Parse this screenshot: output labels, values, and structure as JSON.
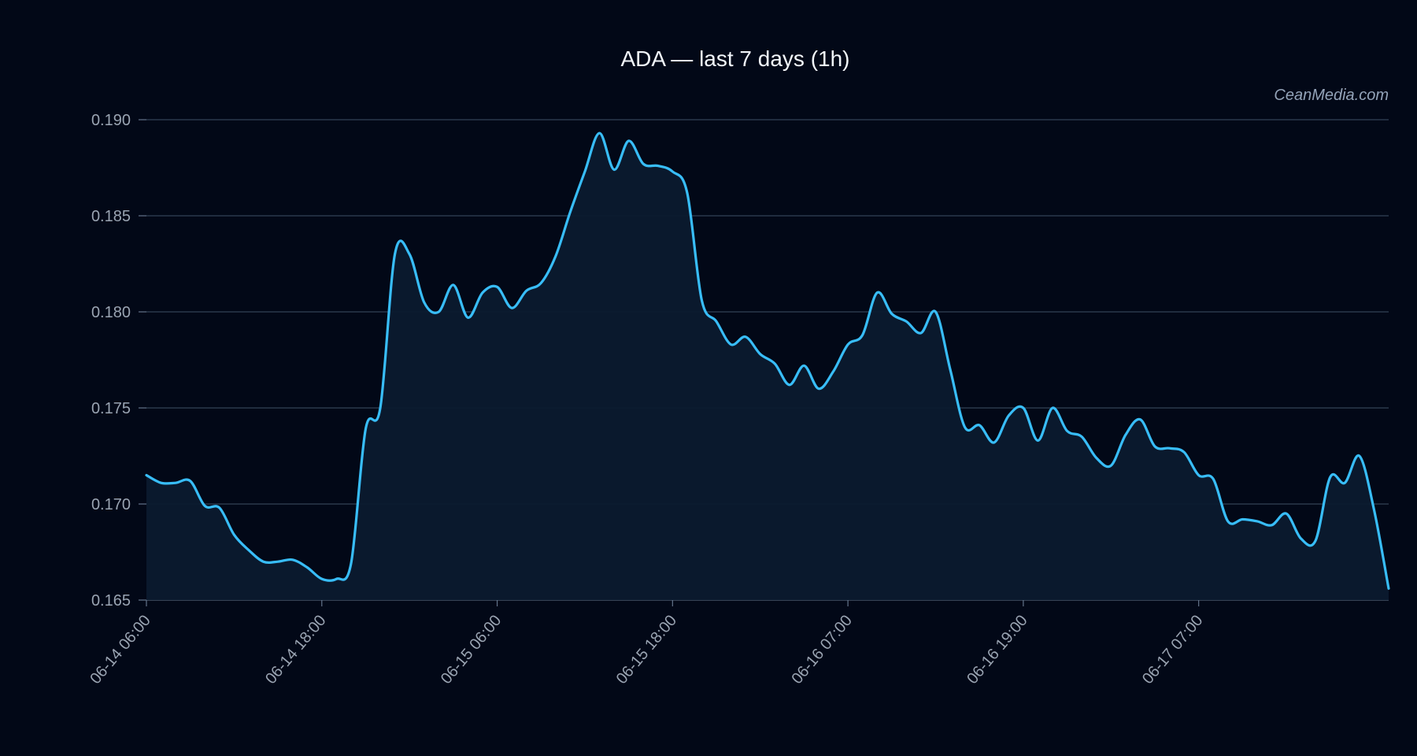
{
  "chart_data": {
    "type": "area",
    "title": "ADA — last 7 days (1h)",
    "watermark": "CeanMedia.com",
    "xlabel": "",
    "ylabel": "",
    "ylim": [
      0.165,
      0.19
    ],
    "y_ticks": [
      "0.165",
      "0.170",
      "0.175",
      "0.180",
      "0.185",
      "0.190"
    ],
    "x_ticks": [
      {
        "label": "06-14 06:00",
        "index": 0
      },
      {
        "label": "06-14 18:00",
        "index": 12
      },
      {
        "label": "06-15 06:00",
        "index": 24
      },
      {
        "label": "06-15 18:00",
        "index": 36
      },
      {
        "label": "06-16 07:00",
        "index": 48
      },
      {
        "label": "06-16 19:00",
        "index": 60
      },
      {
        "label": "06-17 07:00",
        "index": 72
      }
    ],
    "grid": true,
    "series": [
      {
        "color": "#38bdf8",
        "fill": "#0b1a2e",
        "values": [
          0.1715,
          0.1711,
          0.1711,
          0.1712,
          0.1699,
          0.1698,
          0.1684,
          0.1676,
          0.167,
          0.167,
          0.1671,
          0.1667,
          0.1661,
          0.1661,
          0.1669,
          0.1739,
          0.175,
          0.183,
          0.183,
          0.1805,
          0.18,
          0.1814,
          0.1797,
          0.181,
          0.1813,
          0.1802,
          0.1811,
          0.1815,
          0.1829,
          0.1852,
          0.1873,
          0.1893,
          0.1874,
          0.1889,
          0.1877,
          0.1876,
          0.1873,
          0.1862,
          0.1806,
          0.1795,
          0.1783,
          0.1787,
          0.1778,
          0.1773,
          0.1762,
          0.1772,
          0.176,
          0.1769,
          0.1783,
          0.1788,
          0.181,
          0.1799,
          0.1795,
          0.1789,
          0.18,
          0.177,
          0.174,
          0.1741,
          0.1732,
          0.1746,
          0.175,
          0.1733,
          0.175,
          0.1738,
          0.1735,
          0.1724,
          0.172,
          0.1736,
          0.1744,
          0.173,
          0.1729,
          0.1727,
          0.1715,
          0.1713,
          0.1691,
          0.1692,
          0.1691,
          0.1689,
          0.1695,
          0.1682,
          0.1681,
          0.1714,
          0.1711,
          0.1725,
          0.1697,
          0.1656
        ]
      }
    ]
  }
}
